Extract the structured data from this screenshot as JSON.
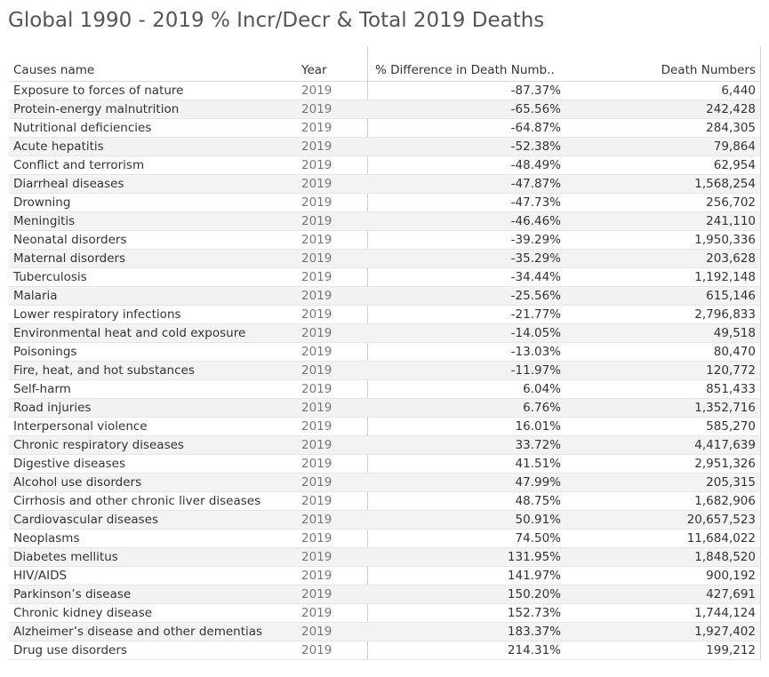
{
  "title": "Global 1990 - 2019 % Incr/Decr & Total 2019 Deaths",
  "chart_data": {
    "type": "table",
    "title": "Global 1990 - 2019 % Incr/Decr & Total 2019 Deaths",
    "columns": [
      "Causes name",
      "Year",
      "% Difference in Death Numb..",
      "Death Numbers"
    ],
    "rows": [
      {
        "cause": "Exposure to forces of nature",
        "year": "2019",
        "pct": "-87.37%",
        "deaths": "6,440"
      },
      {
        "cause": "Protein-energy malnutrition",
        "year": "2019",
        "pct": "-65.56%",
        "deaths": "242,428"
      },
      {
        "cause": "Nutritional deficiencies",
        "year": "2019",
        "pct": "-64.87%",
        "deaths": "284,305"
      },
      {
        "cause": "Acute hepatitis",
        "year": "2019",
        "pct": "-52.38%",
        "deaths": "79,864"
      },
      {
        "cause": "Conflict and terrorism",
        "year": "2019",
        "pct": "-48.49%",
        "deaths": "62,954"
      },
      {
        "cause": "Diarrheal diseases",
        "year": "2019",
        "pct": "-47.87%",
        "deaths": "1,568,254"
      },
      {
        "cause": "Drowning",
        "year": "2019",
        "pct": "-47.73%",
        "deaths": "256,702"
      },
      {
        "cause": "Meningitis",
        "year": "2019",
        "pct": "-46.46%",
        "deaths": "241,110"
      },
      {
        "cause": "Neonatal disorders",
        "year": "2019",
        "pct": "-39.29%",
        "deaths": "1,950,336"
      },
      {
        "cause": "Maternal disorders",
        "year": "2019",
        "pct": "-35.29%",
        "deaths": "203,628"
      },
      {
        "cause": "Tuberculosis",
        "year": "2019",
        "pct": "-34.44%",
        "deaths": "1,192,148"
      },
      {
        "cause": "Malaria",
        "year": "2019",
        "pct": "-25.56%",
        "deaths": "615,146"
      },
      {
        "cause": "Lower respiratory infections",
        "year": "2019",
        "pct": "-21.77%",
        "deaths": "2,796,833"
      },
      {
        "cause": "Environmental heat and cold exposure",
        "year": "2019",
        "pct": "-14.05%",
        "deaths": "49,518"
      },
      {
        "cause": "Poisonings",
        "year": "2019",
        "pct": "-13.03%",
        "deaths": "80,470"
      },
      {
        "cause": "Fire, heat, and hot substances",
        "year": "2019",
        "pct": "-11.97%",
        "deaths": "120,772"
      },
      {
        "cause": "Self-harm",
        "year": "2019",
        "pct": "6.04%",
        "deaths": "851,433"
      },
      {
        "cause": "Road injuries",
        "year": "2019",
        "pct": "6.76%",
        "deaths": "1,352,716"
      },
      {
        "cause": "Interpersonal violence",
        "year": "2019",
        "pct": "16.01%",
        "deaths": "585,270"
      },
      {
        "cause": "Chronic respiratory diseases",
        "year": "2019",
        "pct": "33.72%",
        "deaths": "4,417,639"
      },
      {
        "cause": "Digestive diseases",
        "year": "2019",
        "pct": "41.51%",
        "deaths": "2,951,326"
      },
      {
        "cause": "Alcohol use disorders",
        "year": "2019",
        "pct": "47.99%",
        "deaths": "205,315"
      },
      {
        "cause": "Cirrhosis and other chronic liver diseases",
        "year": "2019",
        "pct": "48.75%",
        "deaths": "1,682,906"
      },
      {
        "cause": "Cardiovascular diseases",
        "year": "2019",
        "pct": "50.91%",
        "deaths": "20,657,523"
      },
      {
        "cause": "Neoplasms",
        "year": "2019",
        "pct": "74.50%",
        "deaths": "11,684,022"
      },
      {
        "cause": "Diabetes mellitus",
        "year": "2019",
        "pct": "131.95%",
        "deaths": "1,848,520"
      },
      {
        "cause": "HIV/AIDS",
        "year": "2019",
        "pct": "141.97%",
        "deaths": "900,192"
      },
      {
        "cause": "Parkinson’s disease",
        "year": "2019",
        "pct": "150.20%",
        "deaths": "427,691"
      },
      {
        "cause": "Chronic kidney disease",
        "year": "2019",
        "pct": "152.73%",
        "deaths": "1,744,124"
      },
      {
        "cause": "Alzheimer’s disease and other dementias",
        "year": "2019",
        "pct": "183.37%",
        "deaths": "1,927,402"
      },
      {
        "cause": "Drug use disorders",
        "year": "2019",
        "pct": "214.31%",
        "deaths": "199,212"
      }
    ]
  }
}
